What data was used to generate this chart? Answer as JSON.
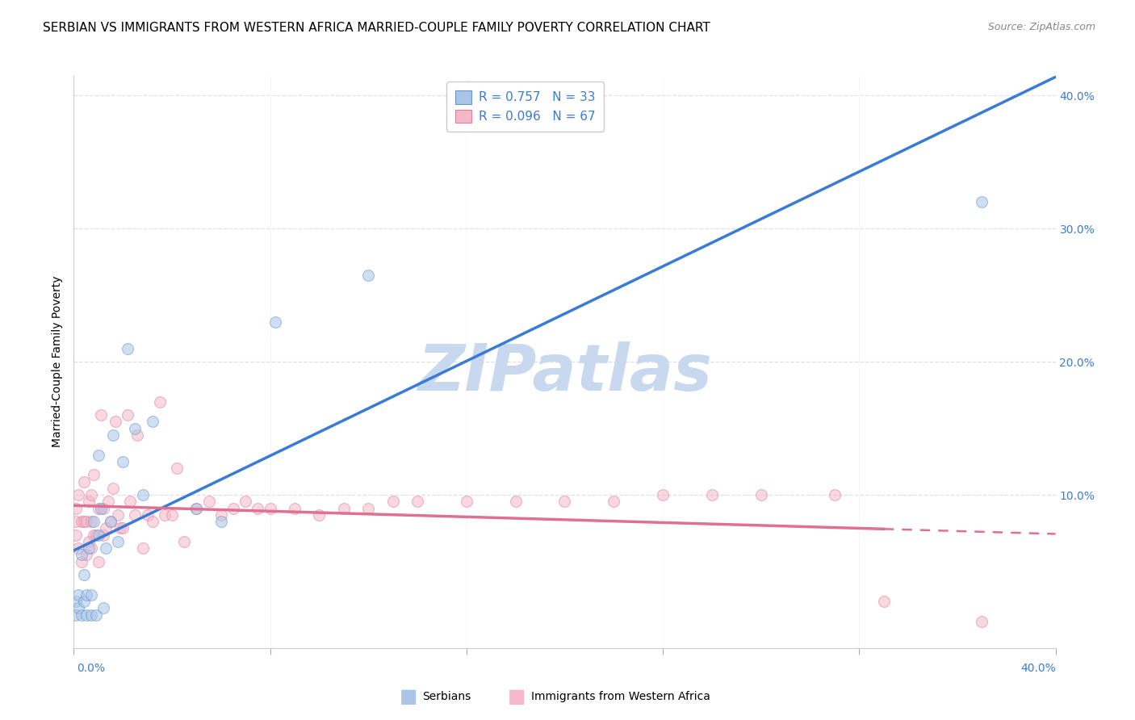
{
  "title": "SERBIAN VS IMMIGRANTS FROM WESTERN AFRICA MARRIED-COUPLE FAMILY POVERTY CORRELATION CHART",
  "source": "Source: ZipAtlas.com",
  "ylabel": "Married-Couple Family Poverty",
  "xlim": [
    0.0,
    0.4
  ],
  "ylim": [
    -0.015,
    0.415
  ],
  "R_serbian": 0.757,
  "N_serbian": 33,
  "R_western_africa": 0.096,
  "N_western_africa": 67,
  "watermark": "ZIPatlas",
  "watermark_color": "#c8d8ee",
  "background_color": "#ffffff",
  "grid_color": "#e0e0e0",
  "serbian_edge": "#6699cc",
  "serbian_fill": "#aac4e8",
  "wa_edge": "#e080a0",
  "wa_fill": "#f5b8c8",
  "reg_blue": "#3a7bd5",
  "reg_pink": "#e07090",
  "title_fontsize": 11,
  "ylabel_fontsize": 10,
  "tick_fontsize": 10,
  "legend_fontsize": 11,
  "marker_size": 100,
  "marker_alpha": 0.55,
  "serbian_x": [
    0.001,
    0.001,
    0.002,
    0.002,
    0.003,
    0.003,
    0.004,
    0.004,
    0.005,
    0.005,
    0.006,
    0.007,
    0.007,
    0.008,
    0.009,
    0.01,
    0.01,
    0.011,
    0.012,
    0.013,
    0.015,
    0.016,
    0.018,
    0.02,
    0.022,
    0.025,
    0.028,
    0.032,
    0.05,
    0.06,
    0.082,
    0.12,
    0.37
  ],
  "serbian_y": [
    0.01,
    0.02,
    0.015,
    0.025,
    0.01,
    0.055,
    0.02,
    0.04,
    0.025,
    0.01,
    0.06,
    0.025,
    0.01,
    0.08,
    0.01,
    0.07,
    0.13,
    0.09,
    0.015,
    0.06,
    0.08,
    0.145,
    0.065,
    0.125,
    0.21,
    0.15,
    0.1,
    0.155,
    0.09,
    0.08,
    0.23,
    0.265,
    0.32
  ],
  "wa_x": [
    0.001,
    0.001,
    0.001,
    0.002,
    0.002,
    0.003,
    0.003,
    0.004,
    0.004,
    0.005,
    0.005,
    0.006,
    0.006,
    0.007,
    0.007,
    0.007,
    0.008,
    0.008,
    0.009,
    0.01,
    0.01,
    0.011,
    0.012,
    0.012,
    0.013,
    0.014,
    0.015,
    0.016,
    0.017,
    0.018,
    0.019,
    0.02,
    0.022,
    0.023,
    0.025,
    0.026,
    0.028,
    0.03,
    0.032,
    0.035,
    0.037,
    0.04,
    0.042,
    0.045,
    0.05,
    0.055,
    0.06,
    0.065,
    0.07,
    0.075,
    0.08,
    0.09,
    0.1,
    0.11,
    0.12,
    0.13,
    0.14,
    0.16,
    0.18,
    0.2,
    0.22,
    0.24,
    0.26,
    0.28,
    0.31,
    0.33,
    0.37
  ],
  "wa_y": [
    0.07,
    0.08,
    0.09,
    0.06,
    0.1,
    0.05,
    0.08,
    0.08,
    0.11,
    0.055,
    0.08,
    0.065,
    0.095,
    0.06,
    0.08,
    0.1,
    0.07,
    0.115,
    0.07,
    0.05,
    0.09,
    0.16,
    0.07,
    0.09,
    0.075,
    0.095,
    0.08,
    0.105,
    0.155,
    0.085,
    0.075,
    0.075,
    0.16,
    0.095,
    0.085,
    0.145,
    0.06,
    0.085,
    0.08,
    0.17,
    0.085,
    0.085,
    0.12,
    0.065,
    0.09,
    0.095,
    0.085,
    0.09,
    0.095,
    0.09,
    0.09,
    0.09,
    0.085,
    0.09,
    0.09,
    0.095,
    0.095,
    0.095,
    0.095,
    0.095,
    0.095,
    0.1,
    0.1,
    0.1,
    0.1,
    0.02,
    0.005
  ]
}
